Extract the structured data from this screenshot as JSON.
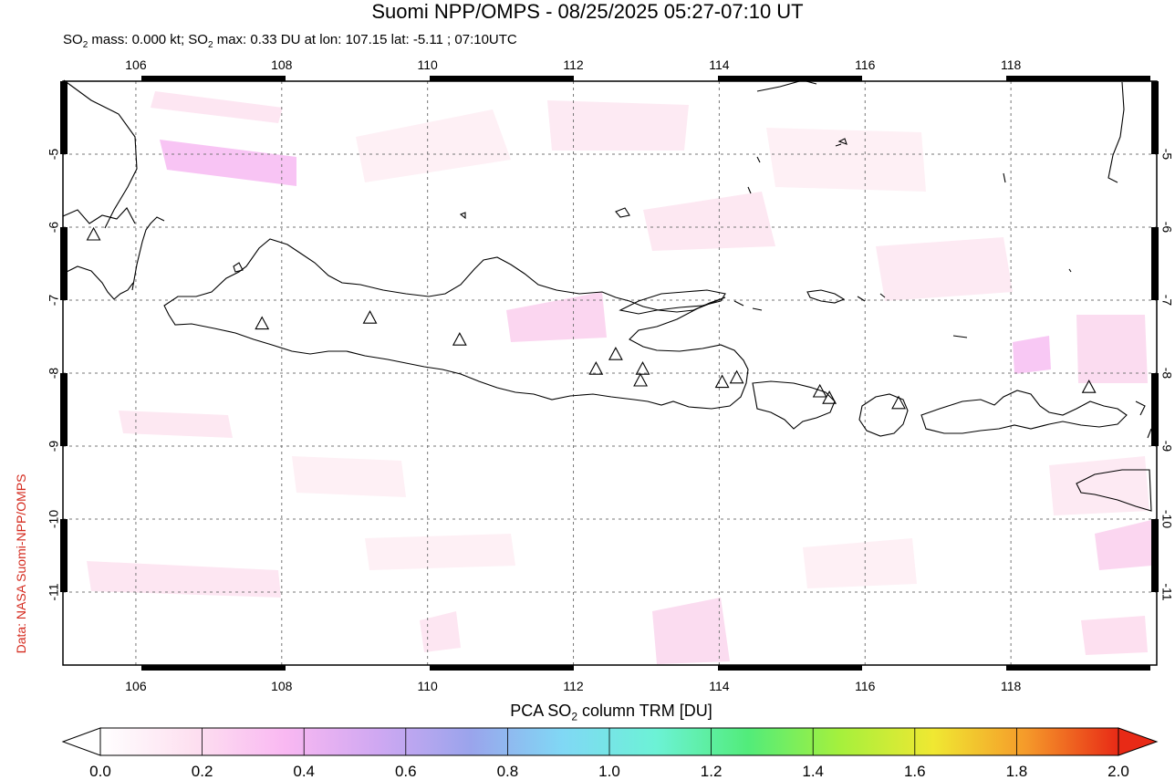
{
  "title": "Suomi NPP/OMPS - 08/25/2025 05:27-07:10 UT",
  "subtitle": {
    "prefix": "SO",
    "sub": "2",
    "text1": " mass: 0.000 kt; SO",
    "sub2": "2",
    "text2": " max: 0.33 DU at lon: 107.15 lat: -5.11 ; 07:10UTC"
  },
  "credit": "Data: NASA Suomi-NPP/OMPS",
  "colorbar": {
    "title_prefix": "PCA SO",
    "title_sub": "2",
    "title_suffix": " column TRM [DU]",
    "ticks": [
      "0.0",
      "0.2",
      "0.4",
      "0.6",
      "0.8",
      "1.0",
      "1.2",
      "1.4",
      "1.6",
      "1.8",
      "2.0"
    ],
    "colors": [
      "#ffffff",
      "#fde0f0",
      "#f9b8f2",
      "#cfa8f2",
      "#9aa4ec",
      "#80d8f5",
      "#6cf2d6",
      "#52ec7a",
      "#a6f03c",
      "#f0e832",
      "#f59a2a",
      "#e82a16"
    ]
  },
  "map": {
    "lon_ticks": [
      "106",
      "108",
      "110",
      "112",
      "114",
      "116",
      "118"
    ],
    "lat_ticks": [
      "-5",
      "-6",
      "-7",
      "-8",
      "-9",
      "-10",
      "-11"
    ],
    "lon_range": [
      105.0,
      120.0
    ],
    "lat_range": [
      -12.0,
      -4.0
    ],
    "volcanoes": [
      {
        "lon": 105.42,
        "lat": -6.1
      },
      {
        "lon": 107.73,
        "lat": -7.32
      },
      {
        "lon": 109.21,
        "lat": -7.24
      },
      {
        "lon": 110.44,
        "lat": -7.54
      },
      {
        "lon": 112.31,
        "lat": -7.94
      },
      {
        "lon": 112.58,
        "lat": -7.74
      },
      {
        "lon": 112.95,
        "lat": -7.94
      },
      {
        "lon": 112.92,
        "lat": -8.1
      },
      {
        "lon": 114.04,
        "lat": -8.12
      },
      {
        "lon": 114.24,
        "lat": -8.06
      },
      {
        "lon": 115.38,
        "lat": -8.25
      },
      {
        "lon": 115.51,
        "lat": -8.34
      },
      {
        "lon": 116.46,
        "lat": -8.41
      },
      {
        "lon": 119.07,
        "lat": -8.19
      }
    ]
  }
}
